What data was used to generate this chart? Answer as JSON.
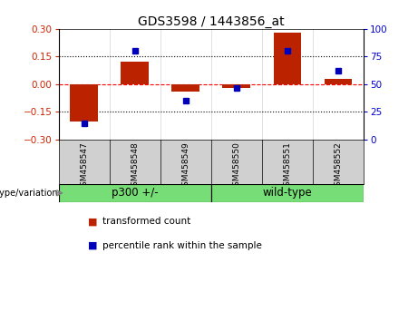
{
  "title": "GDS3598 / 1443856_at",
  "samples": [
    "GSM458547",
    "GSM458548",
    "GSM458549",
    "GSM458550",
    "GSM458551",
    "GSM458552"
  ],
  "red_values": [
    -0.2,
    0.12,
    -0.04,
    -0.02,
    0.28,
    0.03
  ],
  "blue_values": [
    15,
    80,
    35,
    47,
    80,
    62
  ],
  "group_ranges": [
    [
      0,
      2,
      "p300 +/-"
    ],
    [
      3,
      5,
      "wild-type"
    ]
  ],
  "ylim_left": [
    -0.3,
    0.3
  ],
  "ylim_right": [
    0,
    100
  ],
  "yticks_left": [
    -0.3,
    -0.15,
    0,
    0.15,
    0.3
  ],
  "yticks_right": [
    0,
    25,
    50,
    75,
    100
  ],
  "hline_dotted": [
    -0.15,
    0.15
  ],
  "hline_dashed": 0,
  "red_color": "#bb2200",
  "blue_color": "#0000bb",
  "bar_width": 0.55,
  "legend_items": [
    "transformed count",
    "percentile rank within the sample"
  ],
  "group_label": "genotype/variation",
  "bg_label": "#d0d0d0",
  "group_color": "#77dd77",
  "tick_color_left": "#cc2200",
  "tick_color_right": "#0000cc",
  "title_fontsize": 10,
  "tick_fontsize": 7.5,
  "sample_fontsize": 6.5,
  "group_fontsize": 8.5,
  "legend_fontsize": 7.5
}
